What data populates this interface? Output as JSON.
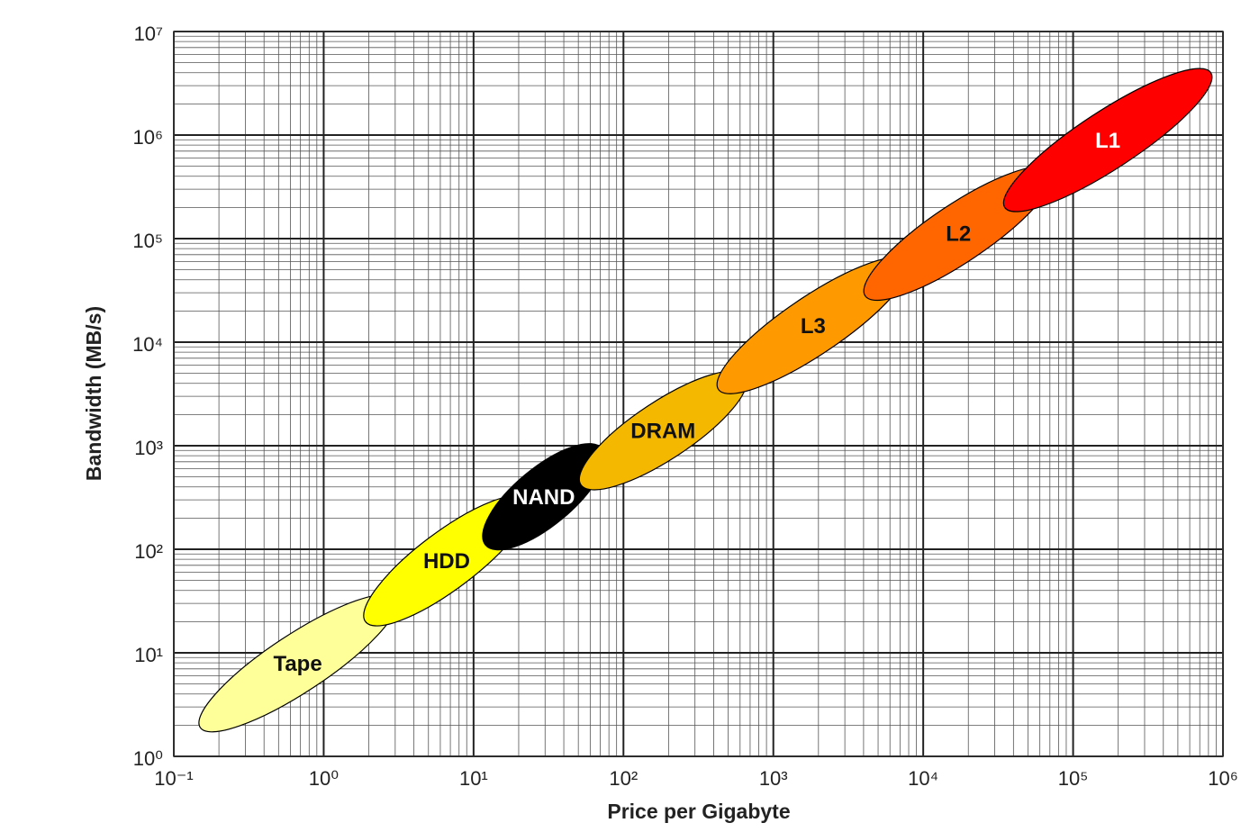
{
  "chart_data": {
    "type": "ellipse-range",
    "x_label": "Price per Gigabyte",
    "y_label": "Bandwidth (MB/s)",
    "log_scale": true,
    "grid": true,
    "xlim": [
      0.1,
      1000000
    ],
    "ylim": [
      1,
      10000000
    ],
    "xticks": [
      {
        "value": 0.1,
        "label": "10⁻¹"
      },
      {
        "value": 1,
        "label": "10⁰"
      },
      {
        "value": 10,
        "label": "10¹"
      },
      {
        "value": 100,
        "label": "10²"
      },
      {
        "value": 1000,
        "label": "10³"
      },
      {
        "value": 10000,
        "label": "10⁴"
      },
      {
        "value": 100000,
        "label": "10⁵"
      },
      {
        "value": 1000000,
        "label": "10⁶"
      }
    ],
    "yticks": [
      {
        "value": 1,
        "label": "10⁰"
      },
      {
        "value": 10,
        "label": "10¹"
      },
      {
        "value": 100,
        "label": "10²"
      },
      {
        "value": 1000,
        "label": "10³"
      },
      {
        "value": 10000,
        "label": "10⁴"
      },
      {
        "value": 100000,
        "label": "10⁵"
      },
      {
        "value": 1000000,
        "label": "10⁶"
      },
      {
        "value": 10000000,
        "label": "10⁷"
      }
    ],
    "series": [
      {
        "name": "Tape",
        "color": "#ffff99",
        "x": [
          0.15,
          3
        ],
        "y": [
          1.9,
          33
        ]
      },
      {
        "name": "HDD",
        "color": "#ffff00",
        "x": [
          1.9,
          23
        ],
        "y": [
          20,
          300
        ]
      },
      {
        "name": "NAND",
        "color": "#000000",
        "x": [
          12,
          72
        ],
        "y": [
          110,
          940
        ]
      },
      {
        "name": "DRAM",
        "color": "#f5b800",
        "x": [
          52,
          650
        ],
        "y": [
          420,
          4700
        ]
      },
      {
        "name": "L3",
        "color": "#ff9900",
        "x": [
          430,
          7900
        ],
        "y": [
          3500,
          60000
        ]
      },
      {
        "name": "L2",
        "color": "#ff6600",
        "x": [
          4100,
          72000
        ],
        "y": [
          28000,
          450000
        ]
      },
      {
        "name": "L1",
        "color": "#ff0000",
        "x": [
          35000,
          830000
        ],
        "y": [
          200000,
          4000000
        ]
      }
    ]
  }
}
